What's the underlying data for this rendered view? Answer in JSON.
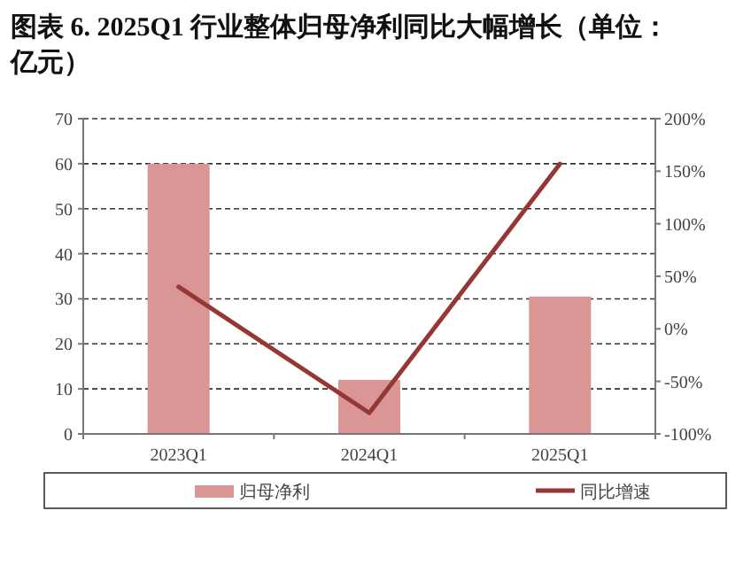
{
  "chart_data": {
    "type": "bar",
    "title": "图表 6. 2025Q1 行业整体归母净利同比大幅增长（单位：亿元）",
    "categories": [
      "2023Q1",
      "2024Q1",
      "2025Q1"
    ],
    "series": [
      {
        "name": "归母净利",
        "color": "#d99694",
        "values": [
          60,
          12,
          30.5
        ]
      },
      {
        "name": "同比增速",
        "type": "line",
        "color": "#953735",
        "axis": "y2",
        "values": [
          40,
          -80,
          157
        ]
      }
    ],
    "ylim": [
      0,
      70
    ],
    "yticks": [
      0,
      10,
      20,
      30,
      40,
      50,
      60,
      70
    ],
    "y2lim": [
      -100,
      200
    ],
    "y2ticks": [
      {
        "value": -100,
        "label": "-100%"
      },
      {
        "value": -50,
        "label": "-50%"
      },
      {
        "value": 0,
        "label": "0%"
      },
      {
        "value": 50,
        "label": "50%"
      },
      {
        "value": 100,
        "label": "100%"
      },
      {
        "value": 150,
        "label": "150%"
      },
      {
        "value": 200,
        "label": "200%"
      }
    ],
    "grid": "y",
    "legend": "bottom"
  }
}
